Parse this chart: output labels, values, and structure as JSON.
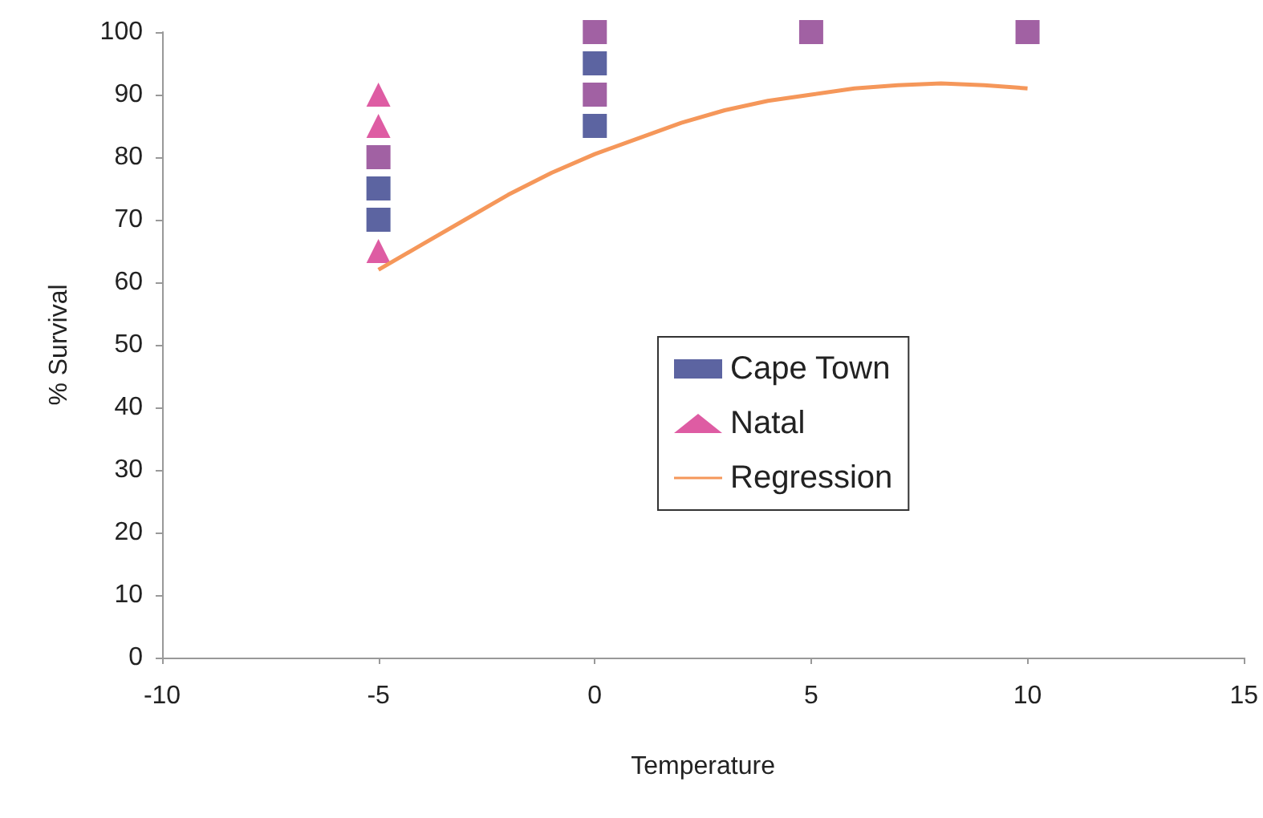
{
  "chart_data": {
    "type": "scatter",
    "xlabel": "Temperature",
    "ylabel": "% Survival",
    "xlim": [
      -10,
      15
    ],
    "xticks": [
      -10,
      -5,
      0,
      5,
      10,
      15
    ],
    "ylim": [
      0,
      100
    ],
    "yticks": [
      0,
      10,
      20,
      30,
      40,
      50,
      60,
      70,
      80,
      90,
      100
    ],
    "grid": false,
    "legend": "center",
    "series": [
      {
        "name": "Cape Town",
        "marker": "square",
        "color": "#333d8a",
        "x": [
          -5,
          -5,
          -5,
          0,
          0,
          0,
          0,
          5,
          10
        ],
        "values": [
          70,
          75,
          80,
          85,
          90,
          95,
          100,
          100,
          100
        ],
        "colors": [
          "#333d8a",
          "#333d8a",
          "#8a3a8c",
          "#333d8a",
          "#8a3a8c",
          "#333d8a",
          "#8a3a8c",
          "#8a3a8c",
          "#8a3a8c"
        ]
      },
      {
        "name": "Natal",
        "marker": "triangle",
        "color": "#d6338c",
        "x": [
          -5,
          -5,
          -5
        ],
        "values": [
          65,
          85,
          90
        ]
      },
      {
        "name": "Regression",
        "type": "line",
        "marker": "none",
        "line_style": "solid",
        "color": "#f5975a",
        "x": [
          -5,
          -4,
          -3,
          -2,
          -1,
          0,
          1,
          2,
          3,
          4,
          5,
          6,
          7,
          8,
          9,
          10
        ],
        "values": [
          62,
          66,
          70,
          74,
          77.5,
          80.5,
          83,
          85.5,
          87.5,
          89,
          90,
          91,
          91.5,
          91.8,
          91.5,
          91
        ]
      }
    ]
  }
}
